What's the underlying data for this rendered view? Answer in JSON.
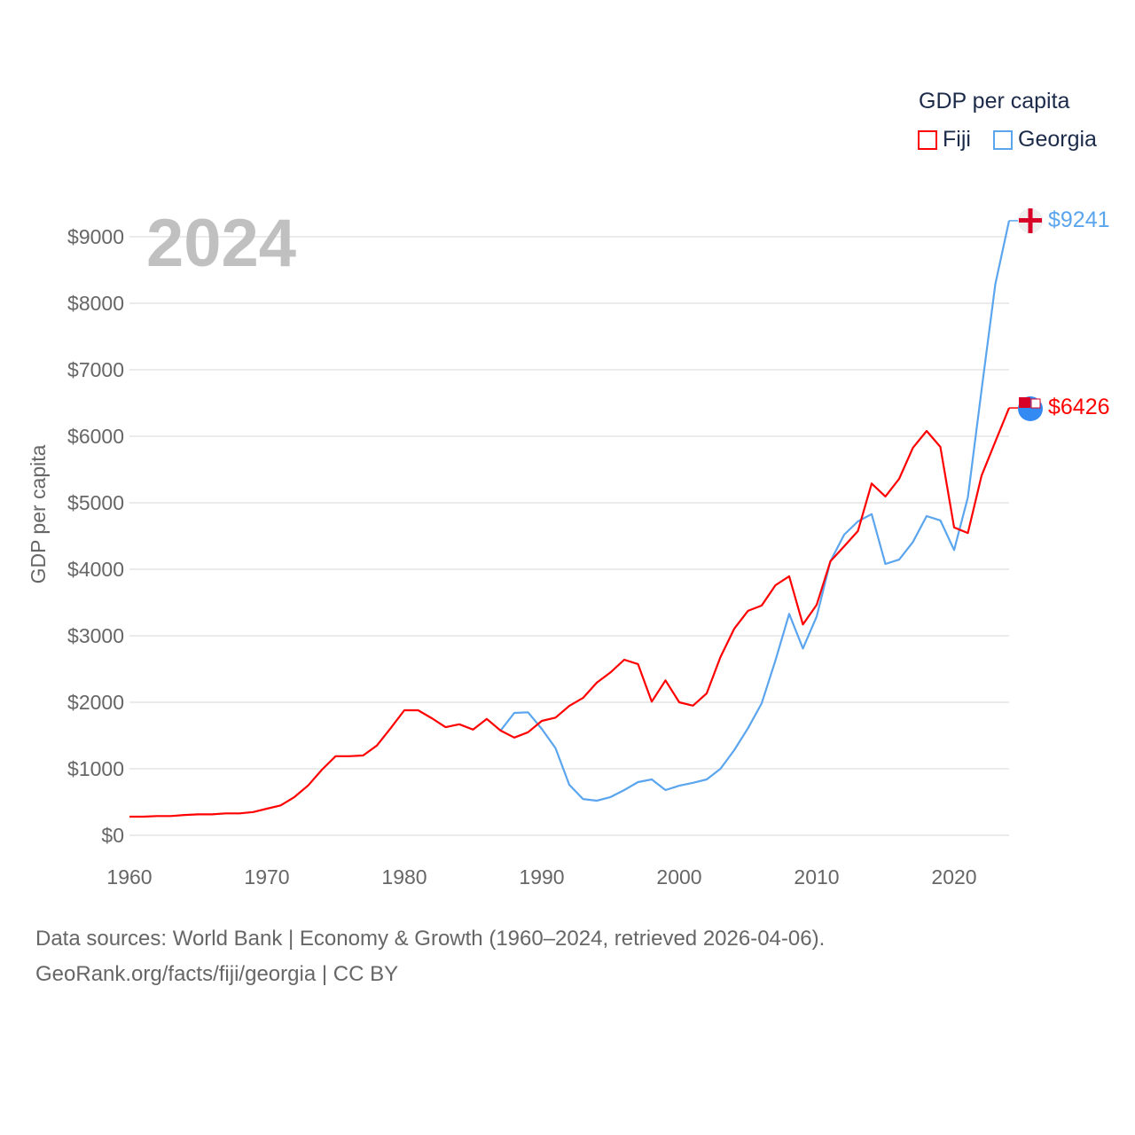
{
  "chart_data": {
    "type": "line",
    "title": "2024",
    "ylabel": "GDP per capita",
    "xlabel": "",
    "xlim": [
      1960,
      2024
    ],
    "ylim": [
      0,
      9000
    ],
    "xticks": [
      "1960",
      "1970",
      "1980",
      "1990",
      "2000",
      "2010",
      "2020"
    ],
    "yticks": [
      "$0",
      "$1000",
      "$2000",
      "$3000",
      "$4000",
      "$5000",
      "$6000",
      "$7000",
      "$8000",
      "$9000"
    ],
    "grid": true,
    "legend": {
      "title": "GDP per capita",
      "placement": "top-right"
    },
    "series": [
      {
        "name": "Fiji",
        "color": "#ff0000",
        "start_year": 1960,
        "end_label": "$6426",
        "values": [
          280,
          280,
          290,
          290,
          305,
          315,
          315,
          330,
          330,
          350,
          400,
          450,
          575,
          750,
          985,
          1190,
          1190,
          1200,
          1350,
          1610,
          1880,
          1880,
          1760,
          1625,
          1670,
          1590,
          1750,
          1575,
          1470,
          1550,
          1720,
          1770,
          1945,
          2065,
          2295,
          2450,
          2640,
          2575,
          2010,
          2330,
          2000,
          1950,
          2135,
          2680,
          3105,
          3375,
          3455,
          3760,
          3895,
          3170,
          3465,
          4120,
          4345,
          4575,
          5290,
          5095,
          5360,
          5825,
          6080,
          5840,
          4630,
          4545,
          5410,
          5920,
          6426
        ]
      },
      {
        "name": "Georgia",
        "color": "#5aa5ee",
        "start_year": 1987,
        "end_label": "$9241",
        "values": [
          1575,
          1840,
          1850,
          1600,
          1310,
          760,
          545,
          520,
          575,
          680,
          800,
          840,
          680,
          745,
          790,
          840,
          1000,
          1280,
          1610,
          1985,
          2630,
          3330,
          2810,
          3290,
          4120,
          4520,
          4720,
          4830,
          4080,
          4145,
          4410,
          4800,
          4735,
          4290,
          5080,
          6700,
          8290,
          9241
        ]
      }
    ]
  },
  "footer": {
    "line1": "Data sources: World Bank | Economy & Growth (1960–2024, retrieved 2026-04-06).",
    "line2": "GeoRank.org/facts/fiji/georgia | CC BY"
  }
}
